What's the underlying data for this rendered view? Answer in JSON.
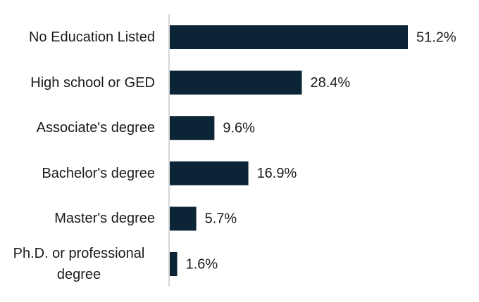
{
  "chart_data": {
    "type": "hbar",
    "categories": [
      "No Education Listed",
      "High school or GED",
      "Associate's degree",
      "Bachelor's degree",
      "Master's degree",
      "Ph.D. or professional degree"
    ],
    "values": [
      51.2,
      28.4,
      9.6,
      16.9,
      5.7,
      1.6
    ],
    "value_labels": [
      "51.2%",
      "28.4%",
      "9.6%",
      "16.9%",
      "5.7%",
      "1.6%"
    ],
    "color": "#0b2537"
  }
}
